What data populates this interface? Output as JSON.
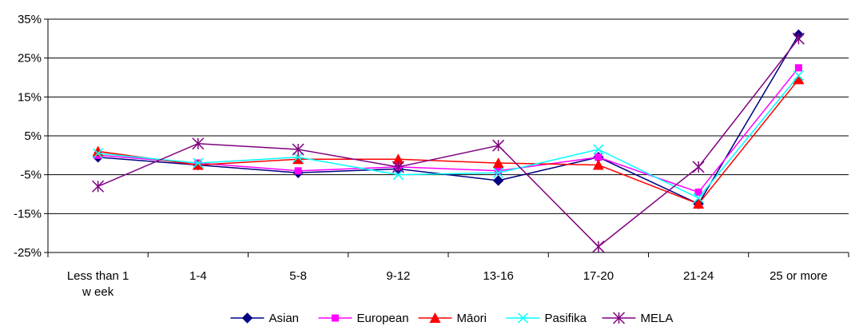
{
  "chart_data": {
    "type": "line",
    "title": "",
    "xlabel": "",
    "ylabel": "",
    "categories": [
      [
        "Less than 1",
        "w eek"
      ],
      [
        "1-4"
      ],
      [
        "5-8"
      ],
      [
        "9-12"
      ],
      [
        "13-16"
      ],
      [
        "17-20"
      ],
      [
        "21-24"
      ],
      [
        "25 or more"
      ]
    ],
    "ylim": [
      -25,
      35
    ],
    "yticks": [
      -25,
      -15,
      -5,
      5,
      15,
      25,
      35
    ],
    "ytick_format": "{v}%",
    "grid": "horizontal",
    "legend_position": "bottom",
    "series": [
      {
        "name": "Asian",
        "color": "#000080",
        "marker": "diamond",
        "values": [
          -0.5,
          -2.5,
          -4.5,
          -3.5,
          -6.5,
          -0.5,
          -12.5,
          31
        ]
      },
      {
        "name": "European",
        "color": "#FF00FF",
        "marker": "square",
        "values": [
          0,
          -2,
          -4,
          -3,
          -4,
          -0.5,
          -9.5,
          22.5
        ]
      },
      {
        "name": "Māori",
        "color": "#FF0000",
        "marker": "triangle",
        "values": [
          1,
          -2.5,
          -1,
          -1,
          -2,
          -2.5,
          -12.5,
          19.5
        ]
      },
      {
        "name": "Pasifika",
        "color": "#00FFFF",
        "marker": "x",
        "values": [
          0.5,
          -2,
          -0.5,
          -5,
          -4.5,
          1.5,
          -11,
          20.5
        ]
      },
      {
        "name": "MELA",
        "color": "#800080",
        "marker": "star",
        "values": [
          -8,
          3,
          1.5,
          -3,
          2.5,
          -23.5,
          -3,
          30
        ]
      }
    ]
  }
}
